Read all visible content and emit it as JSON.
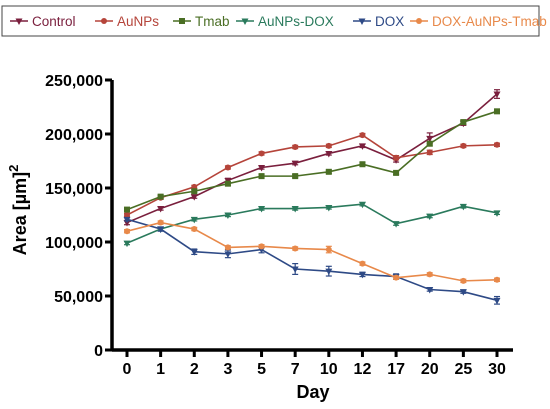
{
  "chart_data": {
    "type": "line",
    "xlabel": "Day",
    "ylabel": "Area [µm]²",
    "ylabel_main": "Area [µm]",
    "ylabel_sup": "2",
    "ylim": [
      0,
      250000
    ],
    "y_ticks": [
      "0",
      "50,000",
      "100,000",
      "150,000",
      "200,000",
      "250,000"
    ],
    "y_tick_values": [
      0,
      50000,
      100000,
      150000,
      200000,
      250000
    ],
    "categories": [
      "0",
      "1",
      "2",
      "3",
      "5",
      "7",
      "10",
      "12",
      "17",
      "20",
      "25",
      "30"
    ],
    "legend_position": "top",
    "legend_border": true,
    "grid": false,
    "series": [
      {
        "name": "Control",
        "color": "#7a1f3d",
        "marker": "triangle-down",
        "values": [
          118000,
          131000,
          142000,
          157000,
          169000,
          173000,
          182000,
          189000,
          176000,
          196000,
          210000,
          237000
        ],
        "errors": [
          2000,
          1500,
          1500,
          2000,
          1500,
          1500,
          1500,
          1500,
          2000,
          5000,
          2000,
          4000
        ]
      },
      {
        "name": "AuNPs",
        "color": "#b5443a",
        "marker": "circle",
        "values": [
          125000,
          141000,
          151000,
          169000,
          182000,
          188000,
          189000,
          199000,
          178000,
          183000,
          189000,
          190000
        ],
        "errors": [
          1500,
          1500,
          1500,
          1500,
          1500,
          1500,
          1500,
          1500,
          2000,
          2000,
          1500,
          1500
        ]
      },
      {
        "name": "Tmab",
        "color": "#4a6e24",
        "marker": "square",
        "values": [
          130000,
          142000,
          147000,
          154000,
          161000,
          161000,
          165000,
          172000,
          164000,
          191000,
          211000,
          221000
        ],
        "errors": [
          1500,
          1500,
          1500,
          1500,
          1500,
          1500,
          1500,
          1500,
          1500,
          2000,
          2000,
          2000
        ]
      },
      {
        "name": "AuNPs-DOX",
        "color": "#2a7a5c",
        "marker": "triangle-down",
        "values": [
          99000,
          112000,
          121000,
          125000,
          131000,
          131000,
          132000,
          135000,
          117000,
          124000,
          133000,
          127000
        ],
        "errors": [
          1500,
          1500,
          1500,
          1500,
          1500,
          1500,
          1500,
          1500,
          1500,
          1500,
          1500,
          1500
        ]
      },
      {
        "name": "DOX",
        "color": "#2e4a86",
        "marker": "triangle-down",
        "values": [
          121000,
          112000,
          91000,
          89000,
          93000,
          75000,
          73000,
          70000,
          68000,
          56000,
          54000,
          46000
        ],
        "errors": [
          1500,
          2000,
          2500,
          3500,
          3000,
          5000,
          4500,
          2000,
          2500,
          1500,
          1500,
          3500
        ]
      },
      {
        "name": "DOX-AuNPs-Tmab",
        "color": "#e8894a",
        "marker": "circle",
        "values": [
          110000,
          118000,
          112000,
          95000,
          96000,
          94000,
          93000,
          80000,
          67000,
          70000,
          64000,
          65000
        ],
        "errors": [
          1500,
          1500,
          1500,
          1500,
          1500,
          1500,
          3000,
          1500,
          1500,
          1500,
          1500,
          1500
        ]
      }
    ]
  }
}
